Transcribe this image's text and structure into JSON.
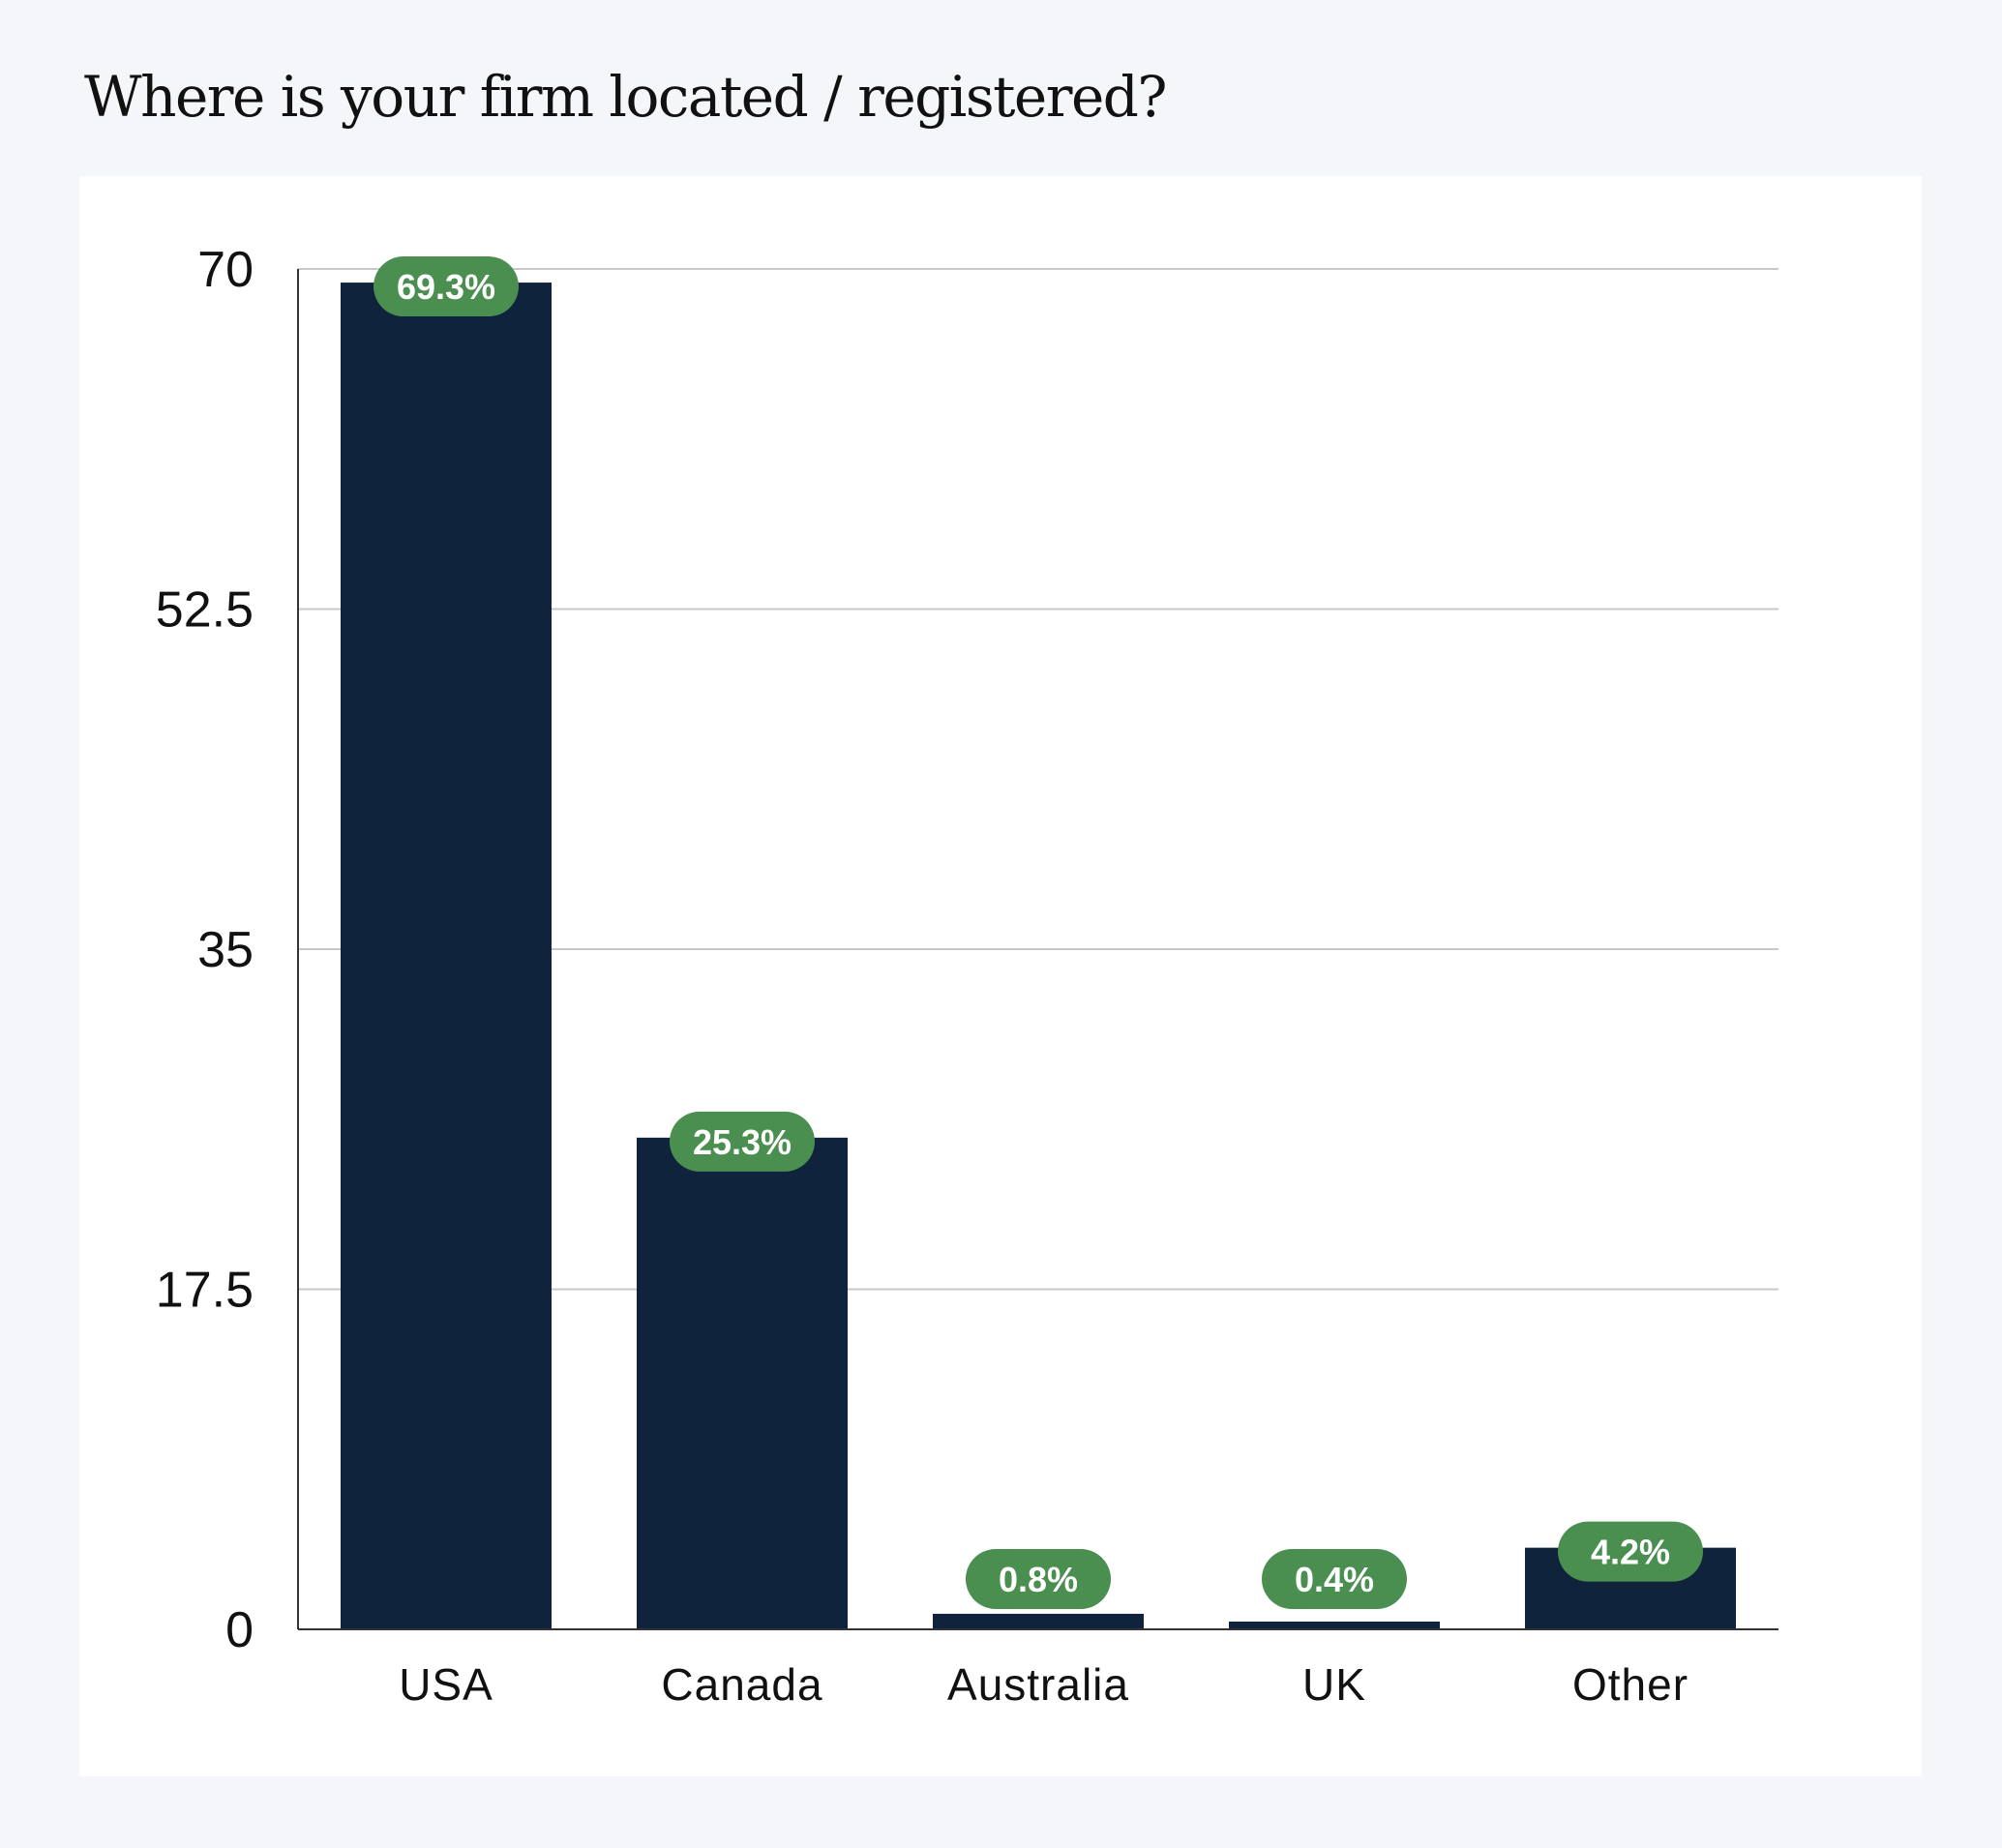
{
  "chart_data": {
    "type": "bar",
    "title": "Where is your firm located / registered?",
    "categories": [
      "USA",
      "Canada",
      "Australia",
      "UK",
      "Other"
    ],
    "values": [
      69.3,
      25.3,
      0.8,
      0.4,
      4.2
    ],
    "data_labels": [
      "69.3%",
      "25.3%",
      "0.8%",
      "0.4%",
      "4.2%"
    ],
    "yticks": [
      0,
      17.5,
      35,
      52.5,
      70
    ],
    "ylim": [
      0,
      70
    ],
    "xlabel": "",
    "ylabel": "",
    "grid": true,
    "legend": "none",
    "colors": {
      "bar": "#0f233d",
      "label_bg": "#4a8f50",
      "gridline": "#c8c8c8",
      "axis": "#333333"
    }
  }
}
